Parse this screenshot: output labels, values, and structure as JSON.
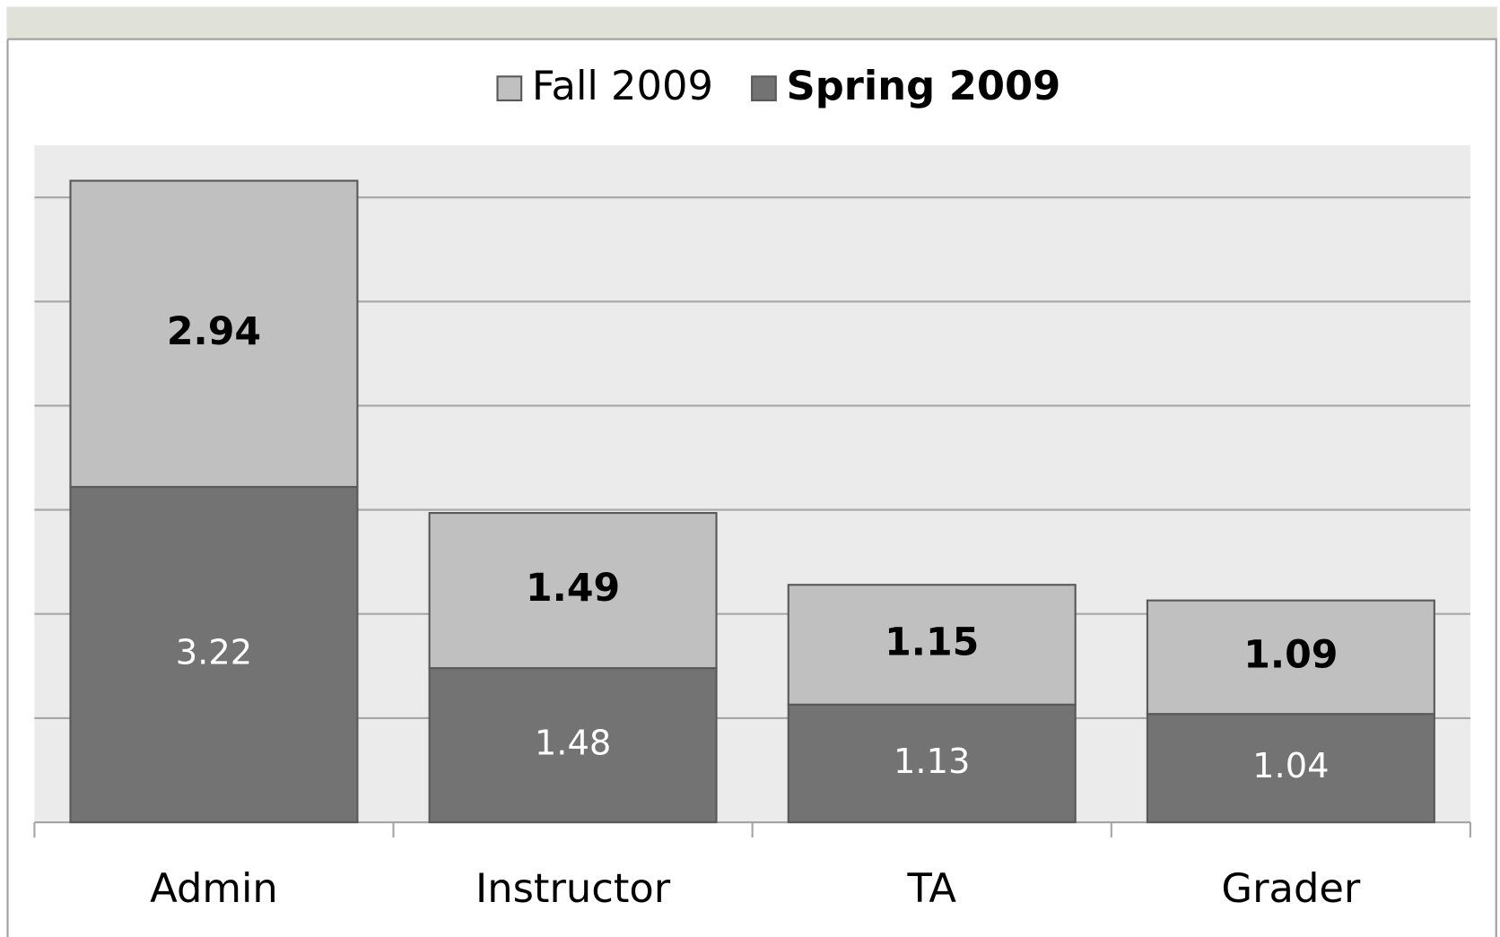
{
  "chart_data": {
    "type": "stacked_bar",
    "categories": [
      "Admin",
      "Instructor",
      "TA",
      "Grader"
    ],
    "series": [
      {
        "name": "Spring 2009",
        "color": "#737373",
        "values": [
          3.22,
          1.48,
          1.13,
          1.04
        ]
      },
      {
        "name": "Fall 2009",
        "color": "#c0c0c0",
        "values": [
          2.94,
          1.49,
          1.15,
          1.09
        ]
      }
    ],
    "ylim": [
      0,
      6.5
    ],
    "yticks": [
      0,
      1,
      2,
      3,
      4,
      5,
      6
    ],
    "grid": true,
    "legend": "top"
  }
}
